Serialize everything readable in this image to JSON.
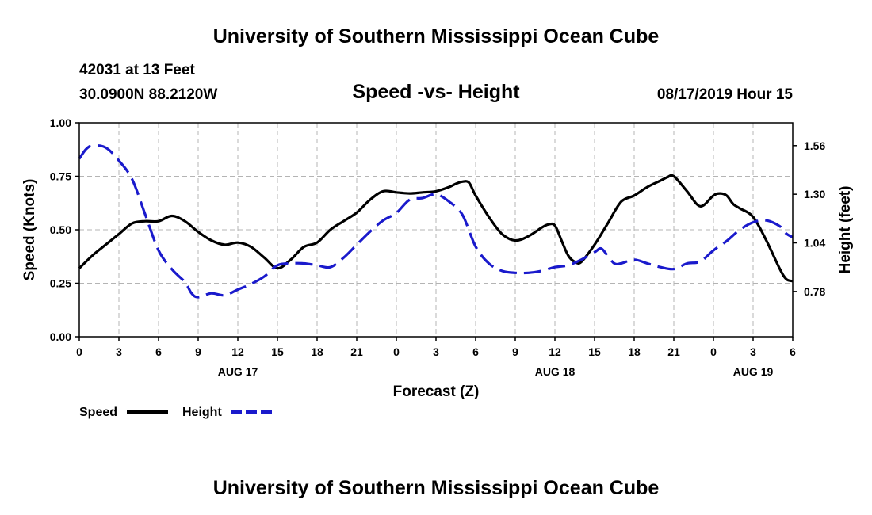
{
  "header": {
    "title": "University of Southern Mississippi Ocean Cube",
    "station": "42031 at 13 Feet",
    "location": "30.0900N 88.2120W",
    "chart_title": "Speed -vs- Height",
    "datetime": "08/17/2019 Hour 15"
  },
  "footer": {
    "title": "University of Southern Mississippi Ocean Cube"
  },
  "legend": {
    "speed_label": "Speed",
    "height_label": "Height"
  },
  "colors": {
    "speed": "#000000",
    "height": "#1a1acc",
    "grid": "#b4b4b4"
  },
  "chart_data": {
    "type": "line",
    "title": "Speed -vs- Height",
    "xlabel": "Forecast (Z)",
    "ylabel": "Speed (Knots)",
    "ylabel_right": "Height (feet)",
    "xlim": [
      0,
      54
    ],
    "ylim": [
      0,
      1
    ],
    "ylim_right": [
      0.538,
      1.682
    ],
    "x_ticks": [
      0,
      3,
      6,
      9,
      12,
      15,
      18,
      21,
      24,
      27,
      30,
      33,
      36,
      39,
      42,
      45,
      48,
      51,
      54
    ],
    "x_tick_labels": [
      "0",
      "3",
      "6",
      "9",
      "12",
      "15",
      "18",
      "21",
      "0",
      "3",
      "6",
      "9",
      "12",
      "15",
      "18",
      "21",
      "0",
      "3",
      "6"
    ],
    "day_labels": [
      {
        "x": 12,
        "label": "AUG 17"
      },
      {
        "x": 36,
        "label": "AUG 18"
      },
      {
        "x": 51,
        "label": "AUG 19"
      }
    ],
    "y_ticks": [
      0,
      0.25,
      0.5,
      0.75,
      1.0
    ],
    "y_tick_labels": [
      "0.00",
      "0.25",
      "0.50",
      "0.75",
      "1.00"
    ],
    "y_right_ticks": [
      0.78,
      1.04,
      1.3,
      1.56
    ],
    "y_right_tick_labels": [
      "0.78",
      "1.04",
      "1.30",
      "1.56"
    ],
    "grid": true,
    "series": [
      {
        "name": "Speed",
        "axis": "left",
        "style": "solid",
        "points": [
          [
            0,
            0.32
          ],
          [
            1,
            0.38
          ],
          [
            2,
            0.43
          ],
          [
            3,
            0.48
          ],
          [
            4,
            0.53
          ],
          [
            5,
            0.54
          ],
          [
            6,
            0.54
          ],
          [
            7,
            0.565
          ],
          [
            8,
            0.54
          ],
          [
            9,
            0.49
          ],
          [
            10,
            0.45
          ],
          [
            11,
            0.43
          ],
          [
            12,
            0.44
          ],
          [
            13,
            0.42
          ],
          [
            14,
            0.37
          ],
          [
            15,
            0.32
          ],
          [
            16,
            0.36
          ],
          [
            17,
            0.42
          ],
          [
            18,
            0.44
          ],
          [
            19,
            0.5
          ],
          [
            20,
            0.54
          ],
          [
            21,
            0.58
          ],
          [
            22,
            0.64
          ],
          [
            23,
            0.68
          ],
          [
            24,
            0.675
          ],
          [
            25,
            0.67
          ],
          [
            26,
            0.675
          ],
          [
            27,
            0.68
          ],
          [
            28,
            0.7
          ],
          [
            28.5,
            0.715
          ],
          [
            29,
            0.725
          ],
          [
            29.5,
            0.72
          ],
          [
            30,
            0.66
          ],
          [
            31,
            0.56
          ],
          [
            32,
            0.48
          ],
          [
            33,
            0.45
          ],
          [
            34,
            0.47
          ],
          [
            35,
            0.51
          ],
          [
            35.5,
            0.525
          ],
          [
            36,
            0.52
          ],
          [
            36.5,
            0.45
          ],
          [
            37,
            0.38
          ],
          [
            37.5,
            0.35
          ],
          [
            38,
            0.35
          ],
          [
            39,
            0.43
          ],
          [
            40,
            0.53
          ],
          [
            41,
            0.63
          ],
          [
            42,
            0.66
          ],
          [
            43,
            0.7
          ],
          [
            44,
            0.73
          ],
          [
            44.5,
            0.745
          ],
          [
            45,
            0.75
          ],
          [
            46,
            0.68
          ],
          [
            47,
            0.61
          ],
          [
            48,
            0.66
          ],
          [
            48.5,
            0.67
          ],
          [
            49,
            0.66
          ],
          [
            49.5,
            0.62
          ],
          [
            50,
            0.6
          ],
          [
            51,
            0.56
          ],
          [
            52,
            0.45
          ],
          [
            53,
            0.32
          ],
          [
            53.5,
            0.27
          ],
          [
            54,
            0.26
          ]
        ]
      },
      {
        "name": "Height",
        "axis": "right",
        "style": "dashed",
        "points": [
          [
            0,
            1.49
          ],
          [
            0.5,
            1.54
          ],
          [
            1,
            1.56
          ],
          [
            2,
            1.55
          ],
          [
            3,
            1.48
          ],
          [
            4,
            1.38
          ],
          [
            5,
            1.19
          ],
          [
            6,
            1.0
          ],
          [
            7,
            0.9
          ],
          [
            8,
            0.83
          ],
          [
            8.5,
            0.77
          ],
          [
            9,
            0.75
          ],
          [
            10,
            0.77
          ],
          [
            11,
            0.76
          ],
          [
            12,
            0.79
          ],
          [
            13,
            0.82
          ],
          [
            14,
            0.86
          ],
          [
            15,
            0.92
          ],
          [
            16,
            0.93
          ],
          [
            17,
            0.93
          ],
          [
            18,
            0.92
          ],
          [
            19,
            0.91
          ],
          [
            20,
            0.96
          ],
          [
            21,
            1.03
          ],
          [
            22,
            1.1
          ],
          [
            23,
            1.16
          ],
          [
            24,
            1.2
          ],
          [
            25,
            1.27
          ],
          [
            26,
            1.28
          ],
          [
            27,
            1.3
          ],
          [
            28,
            1.26
          ],
          [
            29,
            1.19
          ],
          [
            30,
            1.02
          ],
          [
            31,
            0.93
          ],
          [
            32,
            0.89
          ],
          [
            33,
            0.88
          ],
          [
            34,
            0.88
          ],
          [
            35,
            0.89
          ],
          [
            36,
            0.91
          ],
          [
            37,
            0.92
          ],
          [
            38,
            0.95
          ],
          [
            39,
            0.99
          ],
          [
            39.5,
            1.01
          ],
          [
            40,
            0.97
          ],
          [
            40.5,
            0.93
          ],
          [
            41,
            0.93
          ],
          [
            42,
            0.95
          ],
          [
            43,
            0.93
          ],
          [
            44,
            0.91
          ],
          [
            45,
            0.9
          ],
          [
            46,
            0.93
          ],
          [
            47,
            0.94
          ],
          [
            48,
            1.0
          ],
          [
            49,
            1.05
          ],
          [
            50,
            1.11
          ],
          [
            51,
            1.15
          ],
          [
            52,
            1.16
          ],
          [
            53,
            1.13
          ],
          [
            53.5,
            1.09
          ],
          [
            54,
            1.07
          ]
        ]
      }
    ]
  }
}
